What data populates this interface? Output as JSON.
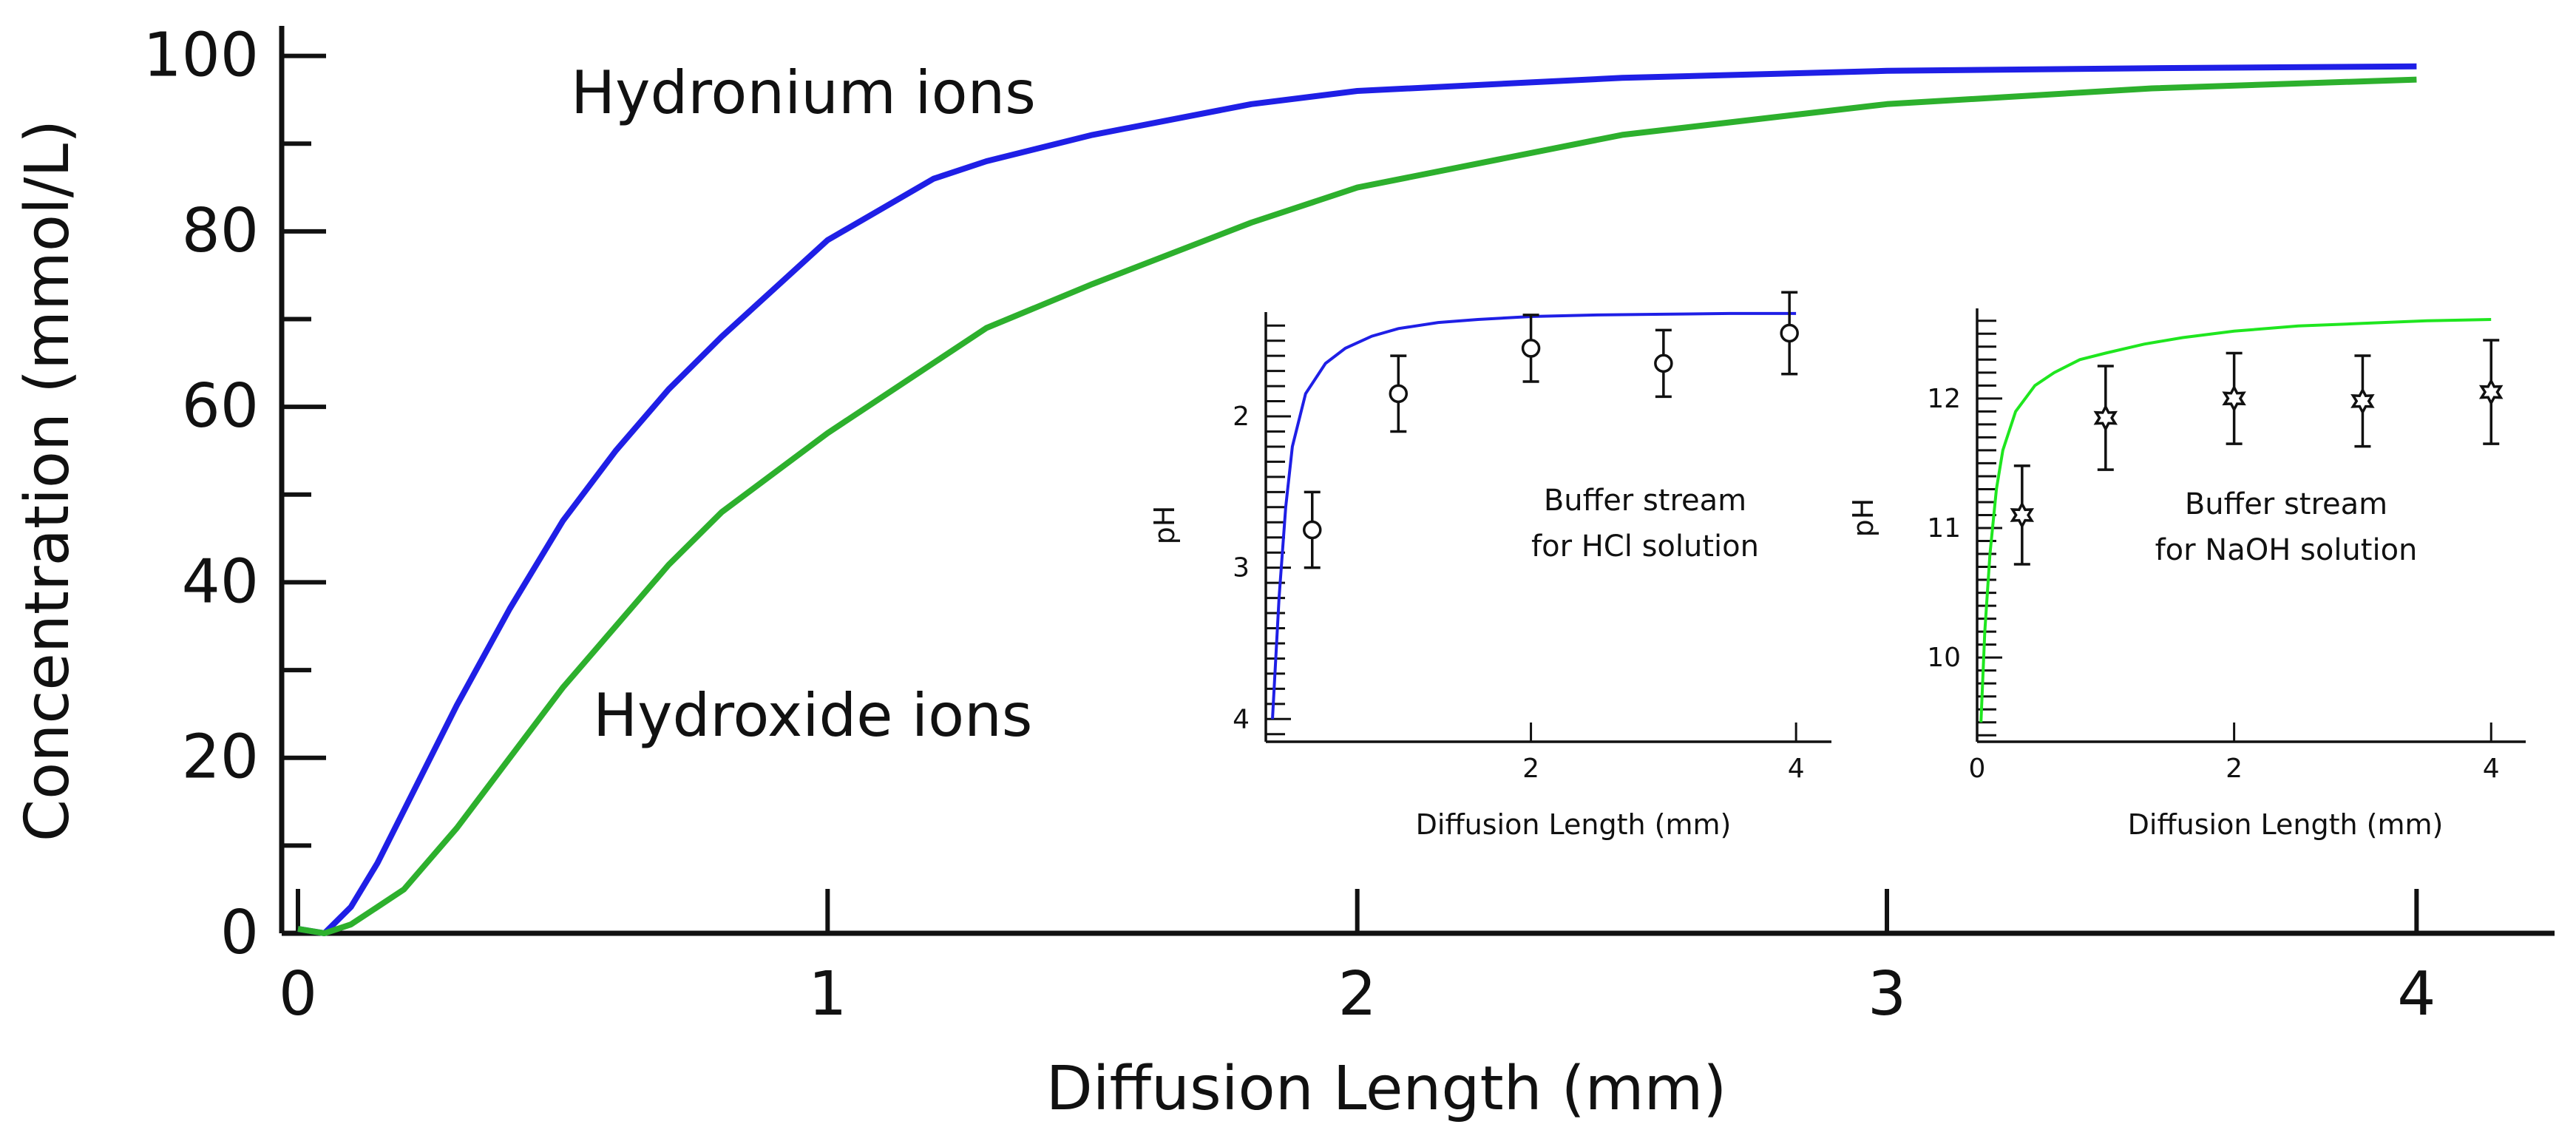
{
  "chart_data": [
    {
      "type": "line",
      "role": "main",
      "title": "",
      "xlabel": "Diffusion Length (mm)",
      "ylabel": "Concentration (mmol/L)",
      "xlim": [
        0,
        4.1
      ],
      "ylim": [
        0,
        103
      ],
      "xticks": [
        0,
        1,
        2,
        3,
        4
      ],
      "xtick_labels": [
        "0",
        "1",
        "2",
        "3",
        "4"
      ],
      "yticks": [
        0,
        20,
        40,
        60,
        80,
        100
      ],
      "ytick_labels": [
        "0",
        "20",
        "40",
        "60",
        "80",
        "100"
      ],
      "y_minor_step": 10,
      "grid": false,
      "series": [
        {
          "name": "Hydronium ions",
          "color": "#1f1fe6",
          "x": [
            0.0,
            0.05,
            0.1,
            0.15,
            0.2,
            0.3,
            0.4,
            0.5,
            0.6,
            0.7,
            0.8,
            1.0,
            1.2,
            1.3,
            1.5,
            1.8,
            2.0,
            2.5,
            3.0,
            3.5,
            4.0
          ],
          "y": [
            0.5,
            0.0,
            3.0,
            8.0,
            14.0,
            26.0,
            37.0,
            47.0,
            55.0,
            62.0,
            68.0,
            79.0,
            86.0,
            88.0,
            91.0,
            94.5,
            96.0,
            97.5,
            98.3,
            98.6,
            98.8
          ]
        },
        {
          "name": "Hydroxide ions",
          "color": "#2db02d",
          "x": [
            0.0,
            0.05,
            0.1,
            0.2,
            0.3,
            0.4,
            0.5,
            0.6,
            0.7,
            0.8,
            1.0,
            1.3,
            1.5,
            1.8,
            2.0,
            2.5,
            3.0,
            3.5,
            4.0
          ],
          "y": [
            0.5,
            0.0,
            1.0,
            5.0,
            12.0,
            20.0,
            28.0,
            35.0,
            42.0,
            48.0,
            57.0,
            69.0,
            74.0,
            81.0,
            85.0,
            91.0,
            94.5,
            96.3,
            97.3
          ]
        }
      ],
      "annotations": [
        {
          "text": "Hydronium ions",
          "series": "Hydronium ions"
        },
        {
          "text": "Hydroxide ions",
          "series": "Hydroxide ions"
        }
      ]
    },
    {
      "type": "line",
      "role": "inset-left",
      "annotation": [
        "Buffer stream",
        "for HCl solution"
      ],
      "xlabel": "Diffusion Length (mm)",
      "ylabel": "pH",
      "xlim": [
        0,
        4.2
      ],
      "ylim": [
        4.15,
        1.35
      ],
      "y_inverted": true,
      "xticks": [
        2,
        4
      ],
      "xtick_labels": [
        "2",
        "4"
      ],
      "yticks": [
        2,
        3,
        4
      ],
      "ytick_labels": [
        "2",
        "3",
        "4"
      ],
      "series": [
        {
          "name": "model",
          "color": "#1f1fe6",
          "x": [
            0.05,
            0.1,
            0.15,
            0.2,
            0.3,
            0.45,
            0.6,
            0.8,
            1.0,
            1.3,
            1.6,
            2.0,
            2.5,
            3.0,
            3.5,
            4.0
          ],
          "y": [
            4.0,
            3.2,
            2.6,
            2.2,
            1.85,
            1.65,
            1.55,
            1.47,
            1.42,
            1.38,
            1.36,
            1.34,
            1.33,
            1.325,
            1.32,
            1.32
          ]
        },
        {
          "name": "measured",
          "marker": "circle",
          "x": [
            0.35,
            1.0,
            2.0,
            3.0,
            3.95
          ],
          "y": [
            2.75,
            1.85,
            1.55,
            1.65,
            1.45
          ],
          "err": [
            0.25,
            0.25,
            0.22,
            0.22,
            0.27
          ]
        }
      ]
    },
    {
      "type": "line",
      "role": "inset-right",
      "annotation": [
        "Buffer stream",
        "for NaOH solution"
      ],
      "xlabel": "Diffusion Length (mm)",
      "ylabel": "pH",
      "xlim": [
        0,
        4.2
      ],
      "ylim": [
        9.35,
        12.65
      ],
      "xticks": [
        0,
        2,
        4
      ],
      "xtick_labels": [
        "0",
        "2",
        "4"
      ],
      "yticks": [
        10,
        11,
        12
      ],
      "ytick_labels": [
        "10",
        "11",
        "12"
      ],
      "series": [
        {
          "name": "model",
          "color": "#1fe61f",
          "x": [
            0.03,
            0.06,
            0.1,
            0.15,
            0.2,
            0.3,
            0.45,
            0.6,
            0.8,
            1.0,
            1.3,
            1.6,
            2.0,
            2.5,
            3.0,
            3.5,
            4.0
          ],
          "y": [
            9.5,
            10.2,
            10.8,
            11.3,
            11.6,
            11.9,
            12.1,
            12.2,
            12.3,
            12.35,
            12.42,
            12.47,
            12.52,
            12.56,
            12.58,
            12.6,
            12.61
          ]
        },
        {
          "name": "measured",
          "marker": "star",
          "x": [
            0.35,
            1.0,
            2.0,
            3.0,
            4.0
          ],
          "y": [
            11.1,
            11.85,
            12.0,
            11.98,
            12.05
          ],
          "err": [
            0.38,
            0.4,
            0.35,
            0.35,
            0.4
          ]
        }
      ]
    }
  ]
}
